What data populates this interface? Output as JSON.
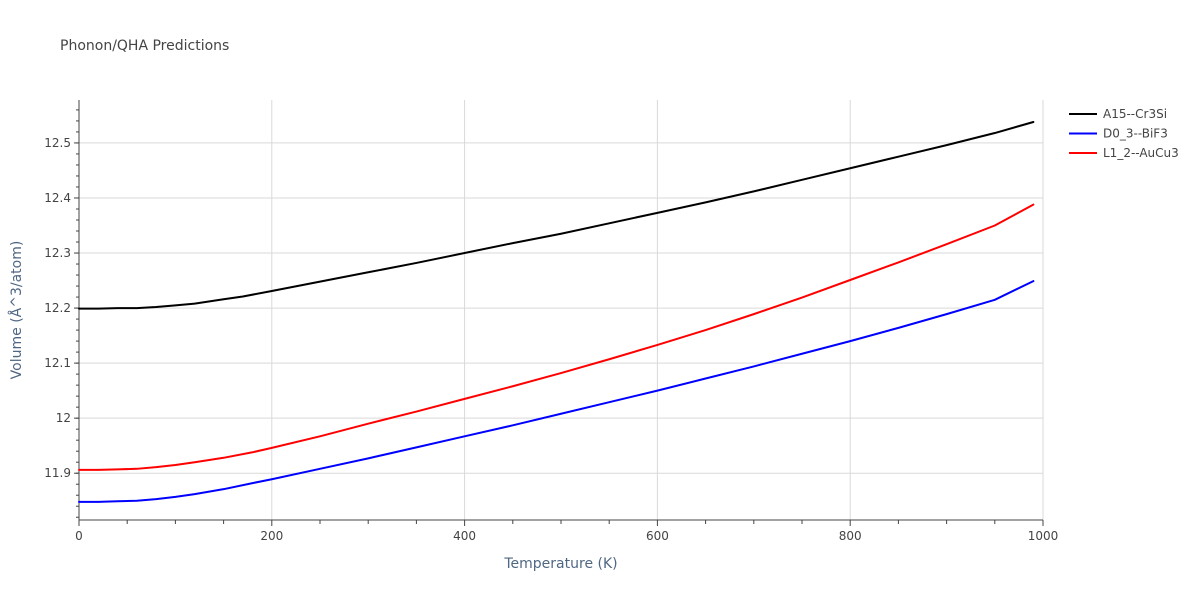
{
  "chart_data": {
    "type": "line",
    "title": "Phonon/QHA Predictions",
    "xlabel": "Temperature (K)",
    "ylabel": "Volume (Å^3/atom)",
    "xlim": [
      0,
      1000
    ],
    "ylim": [
      11.815,
      12.578
    ],
    "x_ticks": [
      0,
      200,
      400,
      600,
      800,
      1000
    ],
    "x_tick_labels": [
      "0",
      "200",
      "400",
      "600",
      "800",
      "1000"
    ],
    "y_ticks": [
      11.9,
      12.0,
      12.1,
      12.2,
      12.3,
      12.4,
      12.5
    ],
    "y_tick_labels": [
      "11.9",
      "12",
      "12.1",
      "12.2",
      "12.3",
      "12.4",
      "12.5"
    ],
    "grid": true,
    "legend_position": "top-right",
    "series": [
      {
        "name": "A15--Cr3Si",
        "color": "#000000",
        "x": [
          0,
          20,
          40,
          60,
          80,
          100,
          120,
          150,
          170,
          200,
          250,
          300,
          350,
          400,
          450,
          500,
          550,
          600,
          650,
          700,
          750,
          800,
          850,
          900,
          950,
          990
        ],
        "y": [
          12.199,
          12.199,
          12.2,
          12.2,
          12.202,
          12.205,
          12.208,
          12.216,
          12.221,
          12.231,
          12.248,
          12.265,
          12.282,
          12.3,
          12.318,
          12.335,
          12.354,
          12.373,
          12.392,
          12.412,
          12.433,
          12.454,
          12.475,
          12.496,
          12.518,
          12.538
        ]
      },
      {
        "name": "D0_3--BiF3",
        "color": "#0000ff",
        "x": [
          0,
          20,
          40,
          60,
          80,
          100,
          120,
          150,
          180,
          200,
          250,
          300,
          350,
          400,
          450,
          500,
          550,
          600,
          650,
          700,
          750,
          800,
          850,
          900,
          950,
          990
        ],
        "y": [
          11.848,
          11.848,
          11.849,
          11.85,
          11.853,
          11.857,
          11.862,
          11.871,
          11.882,
          11.889,
          11.908,
          11.927,
          11.947,
          11.967,
          11.987,
          12.008,
          12.029,
          12.05,
          12.072,
          12.094,
          12.117,
          12.14,
          12.164,
          12.189,
          12.215,
          12.249
        ]
      },
      {
        "name": "L1_2--AuCu3",
        "color": "#ff0000",
        "x": [
          0,
          20,
          40,
          60,
          80,
          100,
          120,
          150,
          180,
          200,
          250,
          300,
          350,
          400,
          450,
          500,
          550,
          600,
          650,
          700,
          750,
          800,
          850,
          900,
          950,
          990
        ],
        "y": [
          11.906,
          11.906,
          11.907,
          11.908,
          11.911,
          11.915,
          11.92,
          11.928,
          11.938,
          11.946,
          11.967,
          11.99,
          12.012,
          12.035,
          12.058,
          12.082,
          12.107,
          12.133,
          12.16,
          12.189,
          12.219,
          12.251,
          12.283,
          12.316,
          12.35,
          12.388
        ]
      }
    ]
  }
}
